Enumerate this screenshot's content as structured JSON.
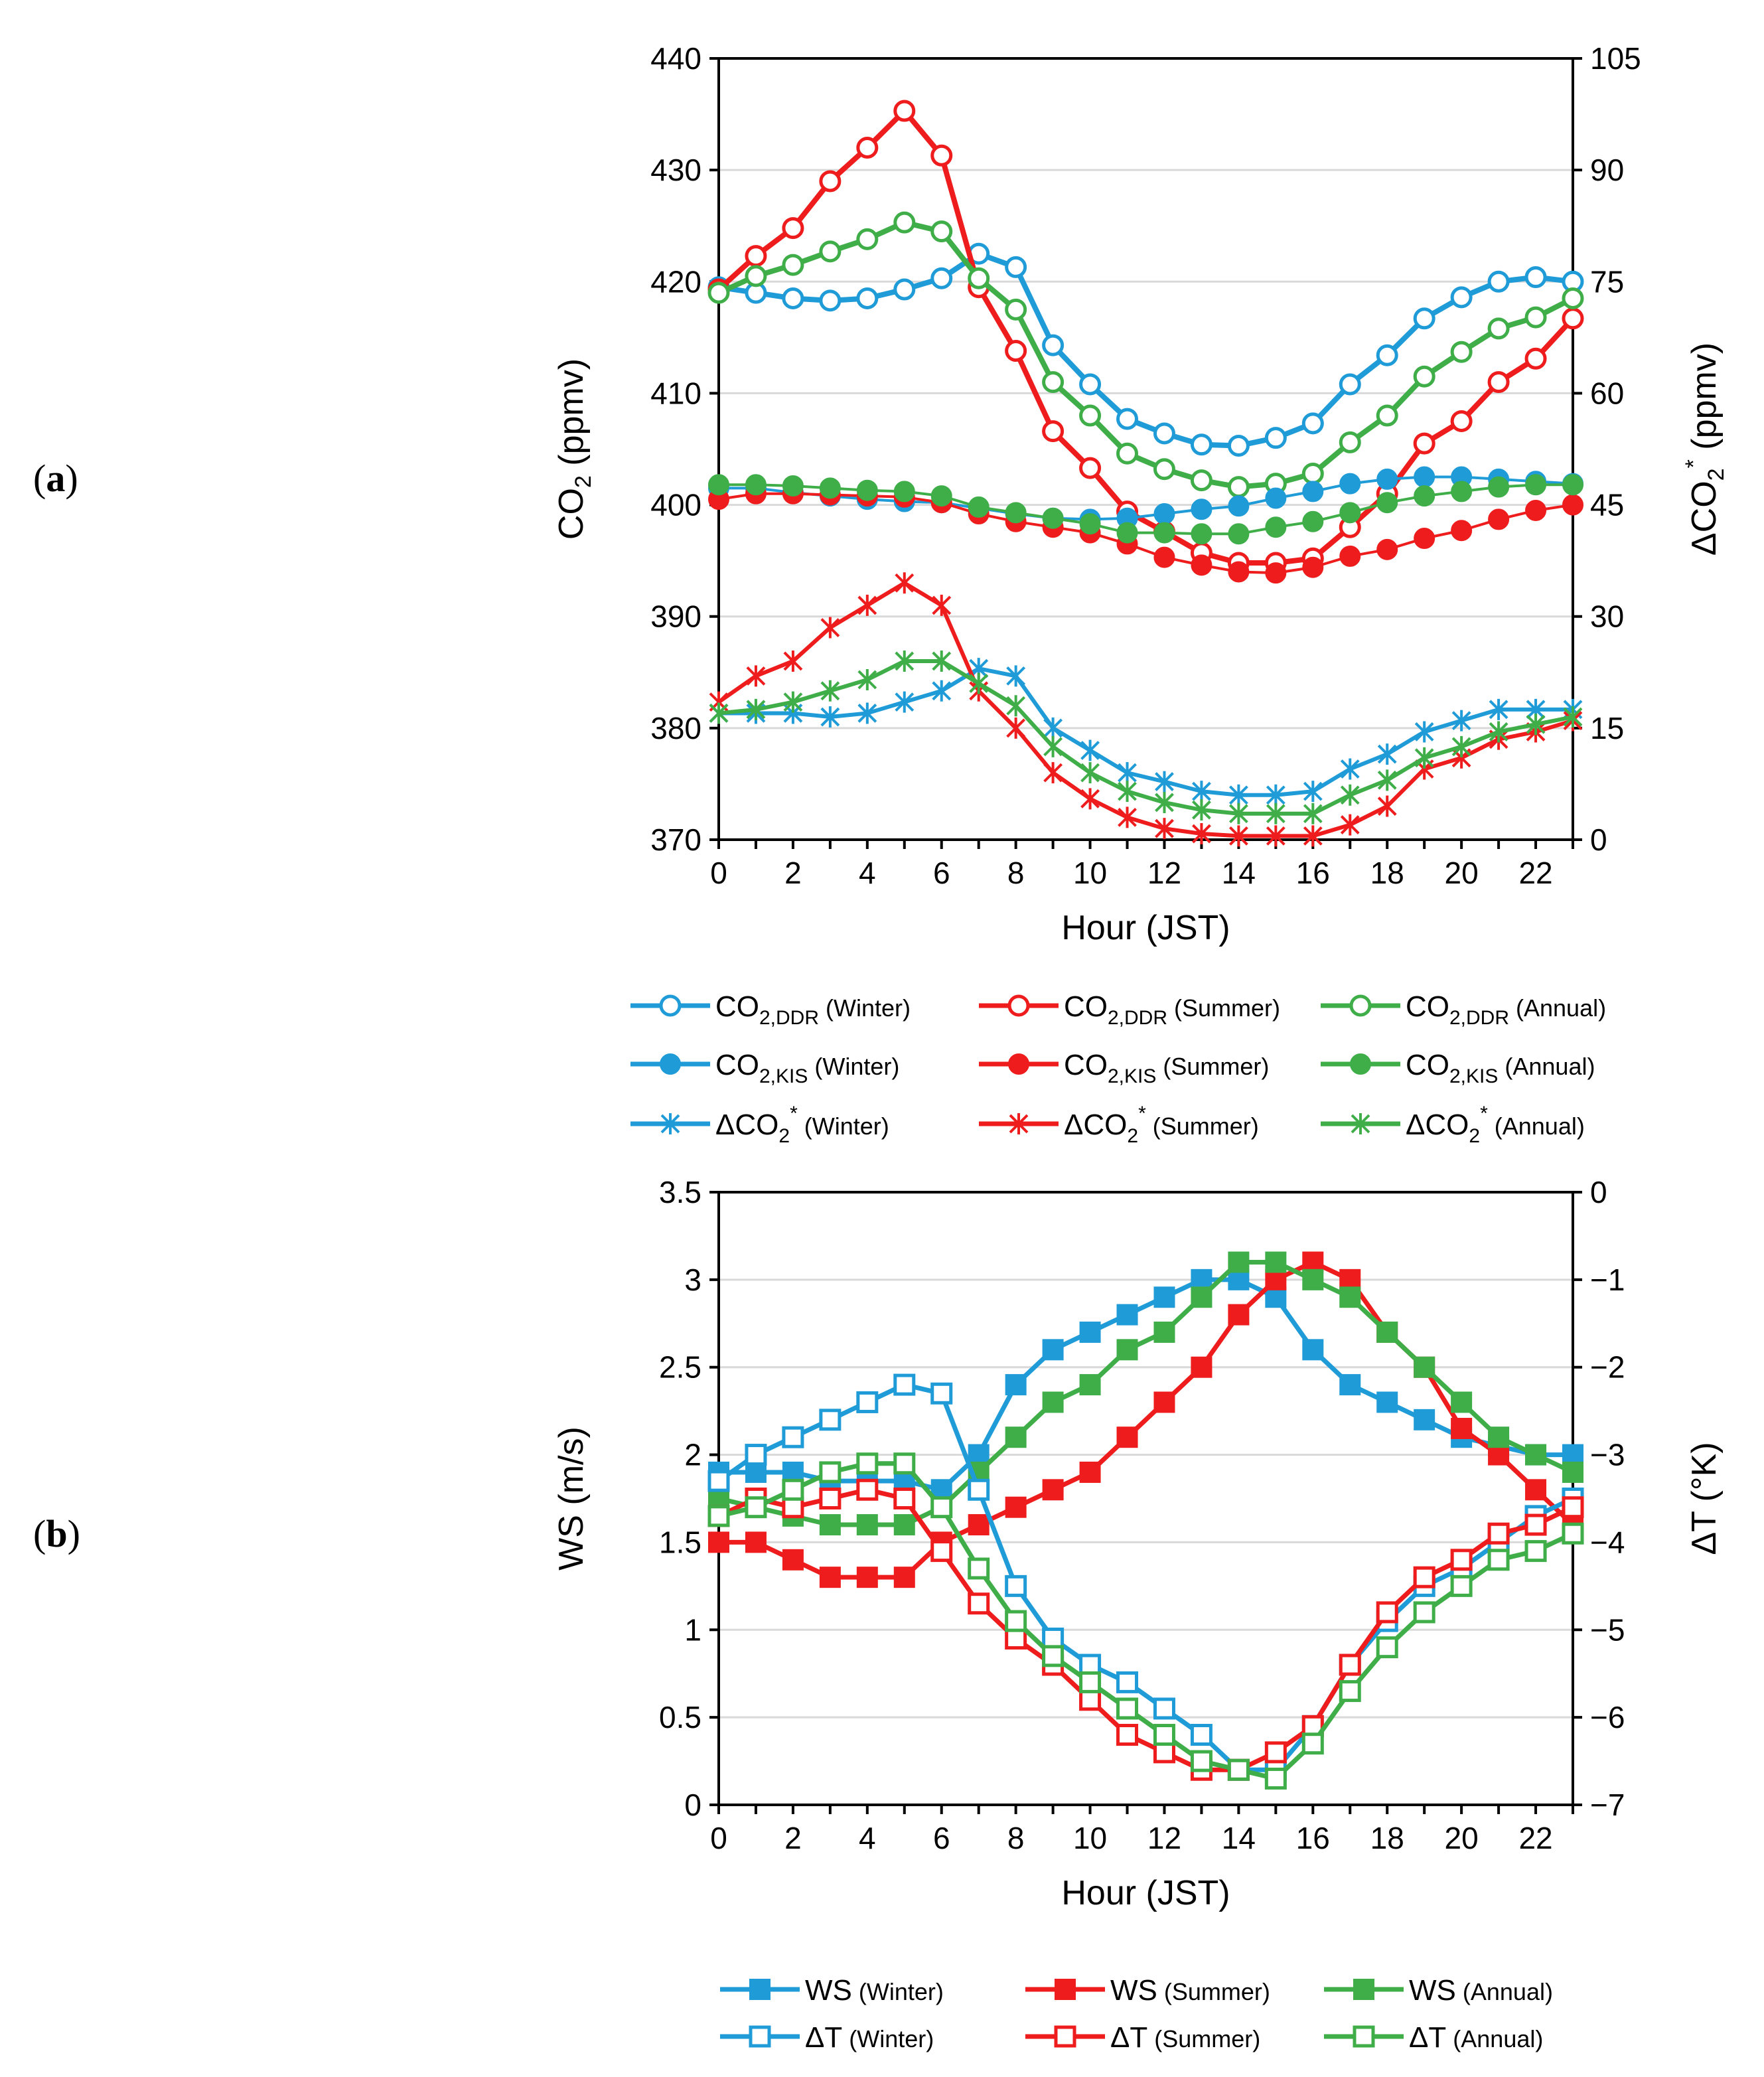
{
  "chart_data": [
    {
      "panel_label": "(a)",
      "type": "line",
      "xlabel": "Hour (JST)",
      "ylabel": "CO2 (ppmv)",
      "ylabel_parts": {
        "base": "CO",
        "sub": "2",
        "unit": " (ppmv)"
      },
      "y2label": "ΔCO2* (ppmv)",
      "y2label_parts": {
        "pre": "ΔCO",
        "sub": "2",
        "sup": "*",
        "unit": " (ppmv)"
      },
      "xlim": [
        0,
        23
      ],
      "ylim": [
        370,
        440
      ],
      "y2lim": [
        0,
        105
      ],
      "x_ticks": [
        0,
        2,
        4,
        6,
        8,
        10,
        12,
        14,
        16,
        18,
        20,
        22
      ],
      "y_ticks": [
        370,
        380,
        390,
        400,
        410,
        420,
        430,
        440
      ],
      "y2_ticks": [
        0,
        15,
        30,
        45,
        60,
        75,
        90,
        105
      ],
      "grid": "horizontal",
      "legend_position": "below",
      "series": [
        {
          "name": "CO2,DDR (Winter)",
          "label_main": "CO",
          "label_sub": "2,DDR",
          "label_sup": "",
          "label_season": " (Winter)",
          "color": "#1f9bd7",
          "marker": "open-circle",
          "axis": "left",
          "width": "thick",
          "values": [
            419.5,
            419,
            418.5,
            418.3,
            418.5,
            419.3,
            420.3,
            422.5,
            421.3,
            414.3,
            410.8,
            407.7,
            406.4,
            405.4,
            405.3,
            406,
            407.3,
            410.8,
            413.4,
            416.7,
            418.6,
            420,
            420.4,
            420
          ]
        },
        {
          "name": "CO2,DDR (Summer)",
          "label_main": "CO",
          "label_sub": "2,DDR",
          "label_sup": "",
          "label_season": " (Summer)",
          "color": "#ee1c1c",
          "marker": "open-circle",
          "axis": "left",
          "width": "thick",
          "values": [
            419.3,
            422.3,
            424.8,
            429,
            432,
            435.3,
            431.3,
            419.5,
            413.8,
            406.6,
            403.3,
            399.4,
            397.6,
            395.7,
            394.8,
            394.8,
            395.2,
            398,
            401,
            405.5,
            407.5,
            411,
            413.1,
            416.7
          ]
        },
        {
          "name": "CO2,DDR (Annual)",
          "label_main": "CO",
          "label_sub": "2,DDR",
          "label_sup": "",
          "label_season": " (Annual)",
          "color": "#3fae49",
          "marker": "open-circle",
          "axis": "left",
          "width": "thick",
          "values": [
            419,
            420.5,
            421.5,
            422.7,
            423.8,
            425.3,
            424.5,
            420.3,
            417.5,
            411,
            408,
            404.6,
            403.2,
            402.2,
            401.6,
            401.9,
            402.8,
            405.6,
            408,
            411.5,
            413.7,
            415.8,
            416.8,
            418.5
          ]
        },
        {
          "name": "CO2,KIS (Winter)",
          "label_main": "CO",
          "label_sub": "2,KIS",
          "label_sup": "",
          "label_season": " (Winter)",
          "color": "#1f9bd7",
          "marker": "filled-circle",
          "axis": "left",
          "width": "thin",
          "values": [
            401.5,
            401.5,
            401.1,
            400.8,
            400.5,
            400.3,
            400.2,
            399.7,
            399.2,
            398.8,
            398.7,
            398.8,
            399.2,
            399.6,
            399.9,
            400.6,
            401.2,
            401.9,
            402.3,
            402.5,
            402.5,
            402.3,
            402.1,
            401.9
          ]
        },
        {
          "name": "CO2,KIS (Summer)",
          "label_main": "CO",
          "label_sub": "2,KIS",
          "label_sup": "",
          "label_season": " (Summer)",
          "color": "#ee1c1c",
          "marker": "filled-circle",
          "axis": "left",
          "width": "thin",
          "values": [
            400.5,
            401,
            401,
            400.9,
            400.8,
            400.7,
            400.2,
            399.2,
            398.5,
            398,
            397.5,
            396.5,
            395.3,
            394.6,
            394,
            393.9,
            394.4,
            395.4,
            396,
            397,
            397.7,
            398.7,
            399.5,
            400
          ]
        },
        {
          "name": "CO2,KIS (Annual)",
          "label_main": "CO",
          "label_sub": "2,KIS",
          "label_sup": "",
          "label_season": " (Annual)",
          "color": "#3fae49",
          "marker": "filled-circle",
          "axis": "left",
          "width": "thin",
          "values": [
            401.8,
            401.8,
            401.7,
            401.5,
            401.3,
            401.2,
            400.8,
            399.8,
            399.3,
            398.8,
            398.3,
            397.5,
            397.5,
            397.4,
            397.4,
            398,
            398.5,
            399.3,
            400.2,
            400.8,
            401.2,
            401.6,
            401.8,
            401.8
          ]
        },
        {
          "name": "ΔCO2* (Winter)",
          "label_main": "ΔCO",
          "label_sub": "2",
          "label_sup": "*",
          "label_season": " (Winter)",
          "color": "#1f9bd7",
          "marker": "star",
          "axis": "right",
          "width": "medium",
          "values": [
            17,
            17,
            17,
            16.5,
            17,
            18.5,
            20,
            23,
            22,
            15,
            12,
            9,
            7.8,
            6.5,
            6,
            6,
            6.5,
            9.5,
            11.5,
            14.5,
            16,
            17.5,
            17.5,
            17.5
          ]
        },
        {
          "name": "ΔCO2* (Summer)",
          "label_main": "ΔCO",
          "label_sub": "2",
          "label_sup": "*",
          "label_season": " (Summer)",
          "color": "#ee1c1c",
          "marker": "star",
          "axis": "right",
          "width": "medium",
          "values": [
            18.5,
            22,
            24,
            28.5,
            31.5,
            34.5,
            31.5,
            20,
            15,
            9,
            5.5,
            3,
            1.5,
            0.8,
            0.5,
            0.5,
            0.5,
            2,
            4.5,
            9.5,
            11,
            13.5,
            14.5,
            16
          ]
        },
        {
          "name": "ΔCO2* (Annual)",
          "label_main": "ΔCO",
          "label_sub": "2",
          "label_sup": "*",
          "label_season": " (Annual)",
          "color": "#3fae49",
          "marker": "star",
          "axis": "right",
          "width": "medium",
          "values": [
            17,
            17.5,
            18.5,
            20,
            21.5,
            24,
            24,
            21,
            18,
            12.5,
            9,
            6.5,
            5,
            4,
            3.5,
            3.5,
            3.5,
            6,
            8,
            11,
            12.5,
            14.5,
            15.5,
            16.5
          ]
        }
      ]
    },
    {
      "panel_label": "(b)",
      "type": "line",
      "xlabel": "Hour (JST)",
      "ylabel": "WS (m/s)",
      "y2label": "ΔT (°K)",
      "xlim": [
        0,
        23
      ],
      "ylim": [
        0,
        3.5
      ],
      "y2lim": [
        -7,
        0
      ],
      "x_ticks": [
        0,
        2,
        4,
        6,
        8,
        10,
        12,
        14,
        16,
        18,
        20,
        22
      ],
      "y_ticks": [
        0,
        0.5,
        1,
        1.5,
        2,
        2.5,
        3,
        3.5
      ],
      "y_tick_labels": [
        "0",
        "0.5",
        "1",
        "1.5",
        "2",
        "2.5",
        "3",
        "3.5"
      ],
      "y2_ticks": [
        -7,
        -6,
        -5,
        -4,
        -3,
        -2,
        -1,
        0
      ],
      "y2_tick_labels": [
        "−7",
        "−6",
        "−5",
        "−4",
        "−3",
        "−2",
        "−1",
        "0"
      ],
      "grid": "horizontal",
      "legend_position": "below",
      "series": [
        {
          "name": "WS (Winter)",
          "label_main": "WS",
          "label_season": " (Winter)",
          "color": "#1f9bd7",
          "marker": "filled-square",
          "axis": "left",
          "values": [
            1.9,
            1.9,
            1.9,
            1.85,
            1.85,
            1.85,
            1.8,
            2,
            2.4,
            2.6,
            2.7,
            2.8,
            2.9,
            3,
            3,
            2.9,
            2.6,
            2.4,
            2.3,
            2.2,
            2.1,
            2.05,
            2,
            2
          ]
        },
        {
          "name": "WS (Summer)",
          "label_main": "WS",
          "label_season": " (Summer)",
          "color": "#ee1c1c",
          "marker": "filled-square",
          "axis": "left",
          "values": [
            1.5,
            1.5,
            1.4,
            1.3,
            1.3,
            1.3,
            1.5,
            1.6,
            1.7,
            1.8,
            1.9,
            2.1,
            2.3,
            2.5,
            2.8,
            3,
            3.1,
            3,
            2.7,
            2.5,
            2.15,
            2,
            1.8,
            1.6
          ]
        },
        {
          "name": "WS (Annual)",
          "label_main": "WS",
          "label_season": " (Annual)",
          "color": "#3fae49",
          "marker": "filled-square",
          "axis": "left",
          "values": [
            1.75,
            1.7,
            1.65,
            1.6,
            1.6,
            1.6,
            1.7,
            1.9,
            2.1,
            2.3,
            2.4,
            2.6,
            2.7,
            2.9,
            3.1,
            3.1,
            3,
            2.9,
            2.7,
            2.5,
            2.3,
            2.1,
            2,
            1.9
          ]
        },
        {
          "name": "ΔT (Winter)",
          "label_main": "ΔT",
          "label_season": " (Winter)",
          "color": "#1f9bd7",
          "marker": "open-square",
          "axis": "right",
          "values": [
            -3.3,
            -3,
            -2.8,
            -2.6,
            -2.4,
            -2.2,
            -2.3,
            -3.4,
            -4.5,
            -5.1,
            -5.4,
            -5.6,
            -5.9,
            -6.2,
            -6.6,
            -6.6,
            -6.1,
            -5.4,
            -4.9,
            -4.5,
            -4.3,
            -4,
            -3.7,
            -3.5
          ]
        },
        {
          "name": "ΔT (Summer)",
          "label_main": "ΔT",
          "label_season": " (Summer)",
          "color": "#ee1c1c",
          "marker": "open-square",
          "axis": "right",
          "values": [
            -3.7,
            -3.5,
            -3.6,
            -3.5,
            -3.4,
            -3.5,
            -4.1,
            -4.7,
            -5.1,
            -5.4,
            -5.8,
            -6.2,
            -6.4,
            -6.6,
            -6.6,
            -6.4,
            -6.1,
            -5.4,
            -4.8,
            -4.4,
            -4.2,
            -3.9,
            -3.8,
            -3.6
          ]
        },
        {
          "name": "ΔT (Annual)",
          "label_main": "ΔT",
          "label_season": " (Annual)",
          "color": "#3fae49",
          "marker": "open-square",
          "axis": "right",
          "values": [
            -3.7,
            -3.6,
            -3.4,
            -3.2,
            -3.1,
            -3.1,
            -3.6,
            -4.3,
            -4.9,
            -5.3,
            -5.6,
            -5.9,
            -6.2,
            -6.5,
            -6.6,
            -6.7,
            -6.3,
            -5.7,
            -5.2,
            -4.8,
            -4.5,
            -4.2,
            -4.1,
            -3.9
          ]
        }
      ]
    }
  ]
}
